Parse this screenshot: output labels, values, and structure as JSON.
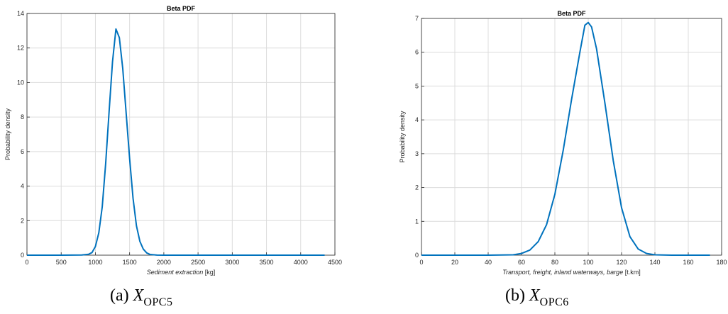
{
  "chart_data": [
    {
      "type": "line",
      "title": "Beta PDF",
      "xlabel": "Sediment extraction",
      "xunit": "[kg]",
      "ylabel": "Probability density",
      "xlim": [
        0,
        4500
      ],
      "ylim": [
        0,
        14
      ],
      "xticks": [
        0,
        500,
        1000,
        1500,
        2000,
        2500,
        3000,
        3500,
        4000,
        4500
      ],
      "yticks": [
        0,
        2,
        4,
        6,
        8,
        10,
        12,
        14
      ],
      "grid": true,
      "line_color": "#0072BD",
      "series": [
        {
          "x": [
            0,
            500,
            800,
            900,
            950,
            1000,
            1050,
            1100,
            1150,
            1200,
            1250,
            1300,
            1350,
            1400,
            1450,
            1500,
            1550,
            1600,
            1650,
            1700,
            1750,
            1800,
            1900,
            2000,
            2500,
            3000,
            3500,
            4000,
            4350
          ],
          "y": [
            0,
            0,
            0.01,
            0.05,
            0.15,
            0.5,
            1.3,
            2.8,
            5.3,
            8.3,
            11.2,
            13.1,
            12.6,
            10.8,
            8.2,
            5.6,
            3.3,
            1.7,
            0.8,
            0.35,
            0.13,
            0.04,
            0.005,
            0,
            0,
            0,
            0,
            0,
            0
          ]
        }
      ]
    },
    {
      "type": "line",
      "title": "Beta PDF",
      "xlabel": "Transport, freight, inland waterways, barge",
      "xunit": "[t.km]",
      "ylabel": "Probability density",
      "xlim": [
        0,
        180
      ],
      "ylim": [
        0,
        7
      ],
      "xticks": [
        0,
        20,
        40,
        60,
        80,
        100,
        120,
        140,
        160,
        180
      ],
      "yticks": [
        0,
        1,
        2,
        3,
        4,
        5,
        6,
        7
      ],
      "grid": true,
      "line_color": "#0072BD",
      "series": [
        {
          "x": [
            0,
            40,
            55,
            60,
            65,
            70,
            75,
            80,
            85,
            90,
            95,
            98,
            100,
            102,
            105,
            110,
            115,
            120,
            125,
            130,
            135,
            140,
            150,
            160,
            173
          ],
          "y": [
            0,
            0,
            0.01,
            0.05,
            0.15,
            0.4,
            0.9,
            1.8,
            3.1,
            4.6,
            6.0,
            6.8,
            6.88,
            6.75,
            6.1,
            4.5,
            2.8,
            1.4,
            0.55,
            0.18,
            0.05,
            0.01,
            0,
            0,
            0
          ]
        }
      ]
    }
  ],
  "captions": [
    {
      "label": "(a)",
      "symbol": "X",
      "subscript": "OPC5"
    },
    {
      "label": "(b)",
      "symbol": "X",
      "subscript": "OPC6"
    }
  ]
}
